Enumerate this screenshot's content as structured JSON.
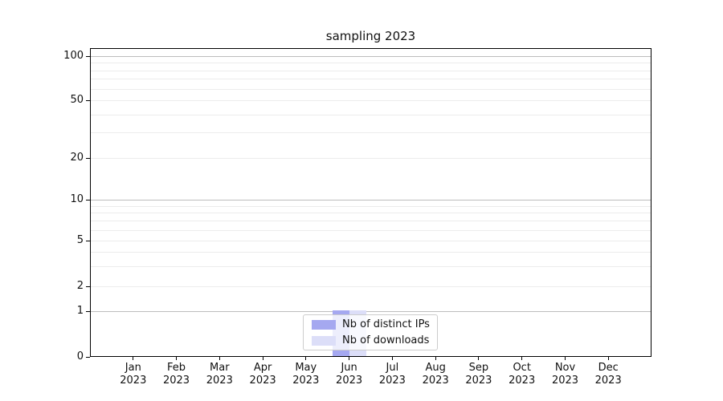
{
  "chart_data": {
    "type": "bar",
    "title": "sampling 2023",
    "categories": [
      "Jan 2023",
      "Feb 2023",
      "Mar 2023",
      "Apr 2023",
      "May 2023",
      "Jun 2023",
      "Jul 2023",
      "Aug 2023",
      "Sep 2023",
      "Oct 2023",
      "Nov 2023",
      "Dec 2023"
    ],
    "months": [
      "Jan",
      "Feb",
      "Mar",
      "Apr",
      "May",
      "Jun",
      "Jul",
      "Aug",
      "Sep",
      "Oct",
      "Nov",
      "Dec"
    ],
    "year_label": "2023",
    "series": [
      {
        "name": "Nb of distinct IPs",
        "color": "#a5a8f0",
        "values": [
          0,
          0,
          0,
          0,
          0,
          1,
          0,
          0,
          0,
          0,
          0,
          0
        ]
      },
      {
        "name": "Nb of downloads",
        "color": "#dcdef8",
        "values": [
          0,
          0,
          0,
          0,
          0,
          1,
          0,
          0,
          0,
          0,
          0,
          0
        ]
      }
    ],
    "y_ticks": [
      0,
      1,
      2,
      5,
      10,
      20,
      50,
      100
    ],
    "y_minor_gridlines": [
      3,
      4,
      6,
      7,
      8,
      9,
      30,
      40,
      60,
      70,
      80,
      90
    ],
    "yscale": "symlog",
    "ylim": [
      0,
      113
    ],
    "xlabel": "",
    "ylabel": "",
    "grid": true,
    "legend_position": "lower center",
    "colors": {
      "grid_decade": "#bdbdbd",
      "grid_minor": "#ececec",
      "axis": "#000000",
      "legend_border": "#cccccc"
    }
  }
}
